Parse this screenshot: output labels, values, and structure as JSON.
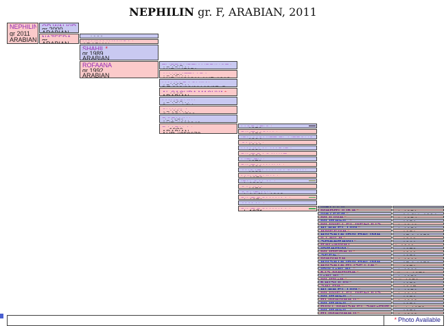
{
  "title": {
    "main": "NEPHILIN",
    "rest": " gr. F, ARABIAN, 2011"
  },
  "colors": {
    "male_bg": "#c9c9f1",
    "female_bg": "#fbcaca",
    "border": "#3f3f3f",
    "link_blue": "#2b2bd5",
    "link_purple": "#9327b5",
    "asterisk": "#e8112d"
  },
  "legend": {
    "asterisk": "*",
    "text": "Photo Available"
  },
  "pedigree": {
    "generations": [
      {
        "gen": 1,
        "cells": [
          {
            "name": "NEPHILIN",
            "ast": false,
            "sex": "f",
            "link": "purple",
            "lines": [
              "gr 2011",
              "ARABIAN"
            ]
          }
        ]
      },
      {
        "gen": 2,
        "cells": [
          {
            "name": "OR WALKIR",
            "ast": true,
            "sex": "m",
            "link": "purple",
            "lines": [
              "gr 2000",
              "ARABIAN"
            ]
          },
          {
            "name": "NAZEERA",
            "ast": false,
            "sex": "f",
            "link": "purple",
            "lines": [
              "gr",
              "ARABIAN"
            ]
          }
        ]
      },
      {
        "gen": 3,
        "cells": [
          {
            "name": "AL KIDIR",
            "ast": true,
            "sex": "m",
            "link": "purple",
            "lines": [
              "gr 1983",
              "ARABIAN",
              "straight Egyptian, blue li…"
            ]
          },
          {
            "name": "HALIMA WANISA",
            "ast": true,
            "sex": "f",
            "link": "purple",
            "lines": [
              "b 1992",
              "ARABIAN"
            ]
          },
          {
            "name": "SHAHIL",
            "ast": true,
            "sex": "m",
            "link": "purple",
            "lines": [
              "gr 1989",
              "ARABIAN"
            ]
          },
          {
            "name": "ROFAANA",
            "ast": false,
            "sex": "f",
            "link": "purple",
            "lines": [
              "gr 1992",
              "ARABIAN"
            ]
          }
        ]
      },
      {
        "gen": 4,
        "cells": [
          {
            "name": "THEEGYPTIANPRINCE",
            "ast": true,
            "sex": "m",
            "link": "purple",
            "lines": [
              "gr 1967",
              "ARABIAN",
              "AHR #45351"
            ]
          },
          {
            "name": "AK KHATTAARA",
            "ast": false,
            "sex": "f",
            "link": "purple",
            "lines": [
              "gr 1979",
              "ARABIAN",
              "AHR #191811 AHR 1918…"
            ]
          },
          {
            "name": "HALIM RAQUIM",
            "ast": true,
            "sex": "m",
            "link": "purple",
            "lines": [
              "gr 1987",
              "ARABIAN",
              "DE 308/08/20168/87. Br…"
            ]
          },
          {
            "name": "AL SACHRA MASUYA",
            "ast": true,
            "sex": "f",
            "link": "purple",
            "lines": [
              "gr 1985",
              "ARABIAN"
            ]
          },
          {
            "name": "MAYSOUN",
            "ast": true,
            "sex": "m",
            "link": "purple",
            "lines": [
              "gr 1985",
              "ARABIAN",
              "Saqlawi Jidran"
            ]
          },
          {
            "name": "SHAHILA",
            "ast": false,
            "sex": "f",
            "link": "purple",
            "lines": [
              "gr 1983",
              "ARABIAN",
              "GASB*4583"
            ]
          },
          {
            "name": "ROFANN",
            "ast": true,
            "sex": "m",
            "link": "purple",
            "lines": [
              "ch 1979",
              "ARABIAN",
              "AHR #202249"
            ]
          },
          {
            "name": "RAAFALA",
            "ast": true,
            "sex": "f",
            "link": "purple",
            "lines": [
              "gr 1986",
              "ARABIAN",
              "AHR #359073"
            ]
          }
        ]
      },
      {
        "gen": 5,
        "cells": [
          {
            "name": "MORAFIC",
            "ast": true,
            "sex": "m",
            "link": "purple",
            "date": "gr 1956",
            "swatch": "#15010d"
          },
          {
            "name": "BINT MONA",
            "ast": true,
            "sex": "f",
            "link": "purple",
            "date": "gr 1958"
          },
          {
            "name": "IBN MONIET EL NEFOUS",
            "ast": true,
            "sex": "m",
            "link": "purple",
            "date": "gr 1964"
          },
          {
            "name": "OMNIA",
            "ast": true,
            "sex": "f",
            "link": "purple",
            "date": "gr 1966"
          },
          {
            "name": "HALIM AL KADIR",
            "ast": true,
            "sex": "m",
            "link": "purple",
            "date": "gr 1981"
          },
          {
            "name": "BINT RAGAWAT",
            "ast": false,
            "sex": "f",
            "link": "purple",
            "date": "gr 1980"
          },
          {
            "name": "MELEK",
            "ast": true,
            "sex": "m",
            "link": "purple",
            "date": "gr 1979"
          },
          {
            "name": "BINT MANAYA",
            "ast": true,
            "sex": "f",
            "link": "purple",
            "date": "gr 1980"
          },
          {
            "name": "ANSATA HALIM SHAH",
            "ast": true,
            "sex": "m",
            "link": "purple",
            "date": "gr 1980"
          },
          {
            "name": "MAYSOUNA",
            "ast": true,
            "sex": "f",
            "link": "purple",
            "date": "ch 1978"
          },
          {
            "name": "IBN GALAL",
            "ast": true,
            "sex": "m",
            "link": "purple",
            "date": "ch 1966",
            "swatch": "#7d8b21"
          },
          {
            "name": "SALIMA",
            "ast": false,
            "sex": "f",
            "link": "purple",
            "date": "gr 1973"
          },
          {
            "name": "SOUFIAN",
            "ast": true,
            "sex": "m",
            "link": "purple",
            "date": "ch 14.3hh 1968"
          },
          {
            "name": "BINT ROMANAA",
            "ast": true,
            "sex": "f",
            "link": "purple",
            "date": "ch 1971",
            "swatch": "#44b05c"
          },
          {
            "name": "AMAAL",
            "ast": true,
            "sex": "m",
            "link": "purple",
            "date": "gr 1968"
          },
          {
            "name": "BINT ROMANAA",
            "ast": true,
            "sex": "f",
            "link": "purple",
            "date": "ch 1971",
            "swatch": "#44b05c"
          }
        ]
      },
      {
        "gen": 6,
        "cells": [
          {
            "name": "NAZEER",
            "ast": true,
            "sex": "m",
            "link": "blue",
            "date": "gr 14.2hh 1934",
            "swatch": "#ee3fa0"
          },
          {
            "name": "MABROUKA",
            "ast": true,
            "sex": "f",
            "link": "purple",
            "date": "ch 1951"
          },
          {
            "name": "NAZEER",
            "ast": true,
            "sex": "m",
            "link": "blue",
            "date": "gr 14.2hh 1934",
            "swatch": "#ee3fa0"
          },
          {
            "name": "MOUNA",
            "ast": true,
            "sex": "f",
            "link": "purple",
            "date": "ch 1954"
          },
          {
            "name": "MORAFIC",
            "ast": true,
            "sex": "m",
            "link": "blue",
            "date": "gr 1956",
            "swatch": "#15010d"
          },
          {
            "name": "MONIET EL NEFOUS",
            "ast": true,
            "sex": "f",
            "link": "purple",
            "date": "ch 1946",
            "swatch": "#4b39e0"
          },
          {
            "name": "ALAA EL DIN",
            "ast": true,
            "sex": "m",
            "link": "blue",
            "date": "ch 1956",
            "swatch": "#bcd093"
          },
          {
            "name": "AMEENA",
            "ast": true,
            "sex": "f",
            "link": "purple",
            "date": "gr 1951"
          },
          {
            "name": "ANSATA IBN HALIMA",
            "ast": true,
            "sex": "m",
            "link": "blue",
            "date": "gr 15.0 1958",
            "swatch": "#2b3f9e"
          },
          {
            "name": "ILLAILA",
            "ast": true,
            "sex": "f",
            "link": "purple",
            "date": "gr 1969"
          },
          {
            "name": "SHAARAWI",
            "ast": true,
            "sex": "m",
            "link": "blue",
            "date": "gr 1961"
          },
          {
            "name": "RAGAWAT",
            "ast": false,
            "sex": "f",
            "link": "purple",
            "date": "b 1969"
          },
          {
            "name": "IBRAHIM",
            "ast": true,
            "sex": "m",
            "link": "blue",
            "date": "gr 1973"
          },
          {
            "name": "MOHEBA II",
            "ast": true,
            "sex": "f",
            "link": "purple",
            "date": "gr 1960"
          },
          {
            "name": "SEEF",
            "ast": true,
            "sex": "m",
            "link": "blue",
            "date": "gr 1959"
          },
          {
            "name": "MANAYA",
            "ast": false,
            "sex": "f",
            "link": "purple",
            "date": "ch 1966"
          },
          {
            "name": "ANSATA IBN HALIMA",
            "ast": true,
            "sex": "m",
            "link": "blue",
            "date": "gr 15.0 1958",
            "swatch": "#2b3f9e"
          },
          {
            "name": "ANSATA ROSETTA",
            "ast": true,
            "sex": "f",
            "link": "purple",
            "date": "gr 1971"
          },
          {
            "name": "IBN GALAL",
            "ast": true,
            "sex": "m",
            "link": "blue",
            "date": "ch 1966",
            "swatch": "#7d8b21"
          },
          {
            "name": "KIS MAHIBA",
            "ast": true,
            "sex": "f",
            "link": "purple",
            "date": "dk ch 1970"
          },
          {
            "name": "GALAL",
            "ast": true,
            "sex": "m",
            "link": "purple",
            "date": "ch 1959"
          },
          {
            "name": "MOHGA",
            "ast": true,
            "sex": "f",
            "link": "purple",
            "date": "blk 1956"
          },
          {
            "name": "KAISOON",
            "ast": true,
            "sex": "m",
            "link": "purple",
            "date": "gr 1958"
          },
          {
            "name": "SALHA",
            "ast": true,
            "sex": "f",
            "link": "purple",
            "date": "gr 1967"
          },
          {
            "name": "ALAA EL DIN",
            "ast": true,
            "sex": "m",
            "link": "blue",
            "date": "ch 1956",
            "swatch": "#bcd093"
          },
          {
            "name": "MONIET EL NEFOUS",
            "ast": true,
            "sex": "f",
            "link": "purple",
            "date": "ch 1946",
            "swatch": "#4b39e0"
          },
          {
            "name": "MORAFIC",
            "ast": true,
            "sex": "m",
            "link": "blue",
            "date": "gr 1956",
            "swatch": "#15010d"
          },
          {
            "name": "ROMANAA II",
            "ast": true,
            "sex": "f",
            "link": "purple",
            "date": "ch 1963"
          },
          {
            "name": "MORAFIC",
            "ast": true,
            "sex": "m",
            "link": "blue",
            "date": "gr 1956",
            "swatch": "#15010d"
          },
          {
            "name": "BINT MAISA EL SAGHIRA",
            "ast": true,
            "sex": "f",
            "link": "purple",
            "date": "b rab 1958"
          },
          {
            "name": "MORAFIC",
            "ast": true,
            "sex": "m",
            "link": "blue",
            "date": "gr 1956",
            "swatch": "#15010d"
          },
          {
            "name": "ROMANAA II",
            "ast": true,
            "sex": "f",
            "link": "purple",
            "date": "ch 1963"
          }
        ]
      }
    ]
  }
}
